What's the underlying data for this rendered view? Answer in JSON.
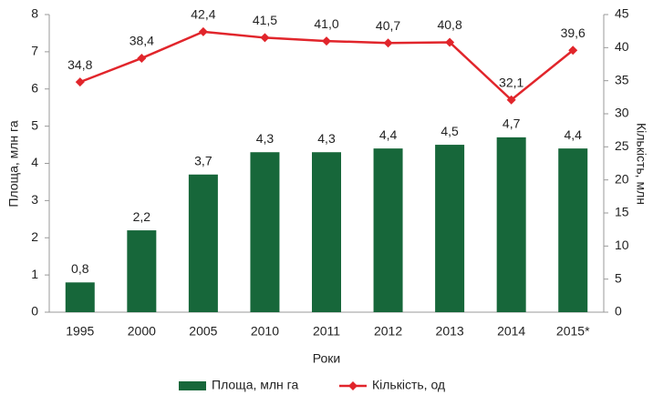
{
  "chart_data": {
    "type": "combo",
    "categories": [
      "1995",
      "2000",
      "2005",
      "2010",
      "2011",
      "2012",
      "2013",
      "2014",
      "2015*"
    ],
    "series": [
      {
        "name": "Площа, млн га",
        "type": "bar",
        "color": "#17673a",
        "axis": "y",
        "values": [
          0.8,
          2.2,
          3.7,
          4.3,
          4.3,
          4.4,
          4.5,
          4.7,
          4.4
        ],
        "value_labels": [
          "0,8",
          "2,2",
          "3,7",
          "4,3",
          "4,3",
          "4,4",
          "4,5",
          "4,7",
          "4,4"
        ]
      },
      {
        "name": "Кількість, од",
        "type": "line",
        "color": "#e1252b",
        "axis": "y2",
        "values": [
          34.8,
          38.4,
          42.4,
          41.5,
          41.0,
          40.7,
          40.8,
          32.1,
          39.6
        ],
        "value_labels": [
          "34,8",
          "38,4",
          "42,4",
          "41,5",
          "41,0",
          "40,7",
          "40,8",
          "32,1",
          "39,6"
        ]
      }
    ],
    "x_label": "Роки",
    "y_label": "Площа, млн га",
    "y2_label": "Кількість, млн",
    "ylim": [
      0,
      8
    ],
    "yticks": [
      0,
      1,
      2,
      3,
      4,
      5,
      6,
      7,
      8
    ],
    "y2lim": [
      0,
      45
    ],
    "y2ticks": [
      0,
      5,
      10,
      15,
      20,
      25,
      30,
      35,
      40,
      45
    ],
    "legend": "bottom"
  }
}
